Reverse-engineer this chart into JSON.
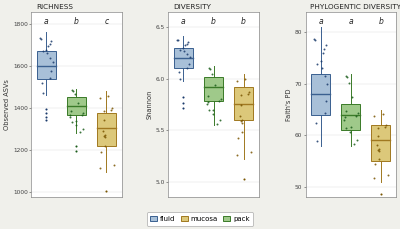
{
  "panels": [
    {
      "title": "RICHNESS",
      "ylabel": "Observed ASVs",
      "ylim": [
        975,
        1855
      ],
      "yticks": [
        1000,
        1200,
        1400,
        1600,
        1800
      ],
      "groups": [
        {
          "label": "fluid",
          "color": "#a8c0d8",
          "edgecolor": "#3a6090",
          "median": 1600,
          "q1": 1535,
          "q3": 1670,
          "whisker_low": 1460,
          "whisker_high": 1760,
          "outliers": [
            1395,
            1375,
            1355,
            1340
          ],
          "sig_letter": "a",
          "x": 1
        },
        {
          "label": "pack",
          "color": "#9fc98a",
          "edgecolor": "#3a7a28",
          "median": 1408,
          "q1": 1365,
          "q3": 1450,
          "whisker_low": 1280,
          "whisker_high": 1490,
          "outliers": [
            1215,
            1195
          ],
          "sig_letter": "b",
          "x": 2
        },
        {
          "label": "mucosa",
          "color": "#dcc87a",
          "edgecolor": "#a07820",
          "median": 1305,
          "q1": 1215,
          "q3": 1375,
          "whisker_low": 1095,
          "whisker_high": 1480,
          "outliers": [
            1005,
            960
          ],
          "sig_letter": "c",
          "x": 3
        }
      ]
    },
    {
      "title": "DIVERSITY",
      "ylabel": "Shannon",
      "ylim": [
        4.85,
        6.65
      ],
      "yticks": [
        5.0,
        5.5,
        6.0,
        6.5
      ],
      "groups": [
        {
          "label": "fluid",
          "color": "#a8c0d8",
          "edgecolor": "#3a6090",
          "median": 6.2,
          "q1": 6.1,
          "q3": 6.3,
          "whisker_low": 5.98,
          "whisker_high": 6.42,
          "outliers": [
            5.82,
            5.76,
            5.72
          ],
          "sig_letter": "a",
          "x": 1
        },
        {
          "label": "pack",
          "color": "#9fc98a",
          "edgecolor": "#3a7a28",
          "median": 5.92,
          "q1": 5.78,
          "q3": 6.02,
          "whisker_low": 5.55,
          "whisker_high": 6.12,
          "outliers": [],
          "sig_letter": "b",
          "x": 2
        },
        {
          "label": "mucosa",
          "color": "#dcc87a",
          "edgecolor": "#a07820",
          "median": 5.75,
          "q1": 5.6,
          "q3": 5.92,
          "whisker_low": 5.22,
          "whisker_high": 6.05,
          "outliers": [
            5.02
          ],
          "sig_letter": "b",
          "x": 3
        }
      ]
    },
    {
      "title": "PHYLOGENTIC DIVERSITY",
      "ylabel": "Faith's PD",
      "ylim": [
        48,
        84
      ],
      "yticks": [
        50,
        60,
        70,
        80
      ],
      "groups": [
        {
          "label": "fluid",
          "color": "#a8c0d8",
          "edgecolor": "#3a6090",
          "median": 68,
          "q1": 64,
          "q3": 72,
          "whisker_low": 58,
          "whisker_high": 81,
          "outliers": [],
          "sig_letter": "a",
          "x": 1
        },
        {
          "label": "pack",
          "color": "#9fc98a",
          "edgecolor": "#3a7a28",
          "median": 64,
          "q1": 61,
          "q3": 66,
          "whisker_low": 58,
          "whisker_high": 72,
          "outliers": [],
          "sig_letter": "a",
          "x": 2
        },
        {
          "label": "mucosa",
          "color": "#dcc87a",
          "edgecolor": "#a07820",
          "median": 59,
          "q1": 55,
          "q3": 62,
          "whisker_low": 51,
          "whisker_high": 65,
          "outliers": [
            48.5
          ],
          "sig_letter": "b",
          "x": 3
        }
      ]
    }
  ],
  "legend": [
    {
      "label": "fluid",
      "color": "#a8c0d8",
      "edgecolor": "#3a6090",
      "dot": "#1a3a6b"
    },
    {
      "label": "mucosa",
      "color": "#dcc87a",
      "edgecolor": "#a07820",
      "dot": "#7a5500"
    },
    {
      "label": "pack",
      "color": "#9fc98a",
      "edgecolor": "#3a7a28",
      "dot": "#1a5c1a"
    }
  ],
  "bg_color": "#f0f0eb",
  "panel_bg": "#ffffff",
  "scatter_colors": {
    "fluid": "#1a3a6b",
    "pack": "#1a5c1a",
    "mucosa": "#7a5500"
  }
}
